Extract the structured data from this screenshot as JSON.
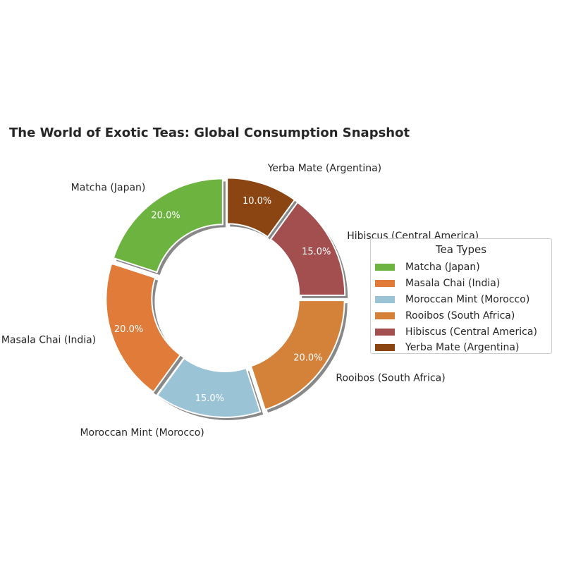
{
  "chart_data": {
    "type": "pie",
    "title": "The World of Exotic Teas: Global Consumption Snapshot",
    "categories": [
      "Matcha (Japan)",
      "Masala Chai (India)",
      "Moroccan Mint (Morocco)",
      "Rooibos (South Africa)",
      "Hibiscus (Central America)",
      "Yerba Mate (Argentina)"
    ],
    "values": [
      20.0,
      20.0,
      15.0,
      20.0,
      15.0,
      10.0
    ],
    "value_labels": [
      "20.0%",
      "20.0%",
      "15.0%",
      "20.0%",
      "15.0%",
      "10.0%"
    ],
    "colors": [
      "#6db33f",
      "#e07b39",
      "#9bc3d6",
      "#d4823a",
      "#a34f4f",
      "#8b4513"
    ],
    "donut": true,
    "exploded": true,
    "shadow": true,
    "start_angle": 90,
    "direction": "counterclockwise",
    "legend": {
      "title": "Tea Types",
      "position": "center-right"
    }
  }
}
